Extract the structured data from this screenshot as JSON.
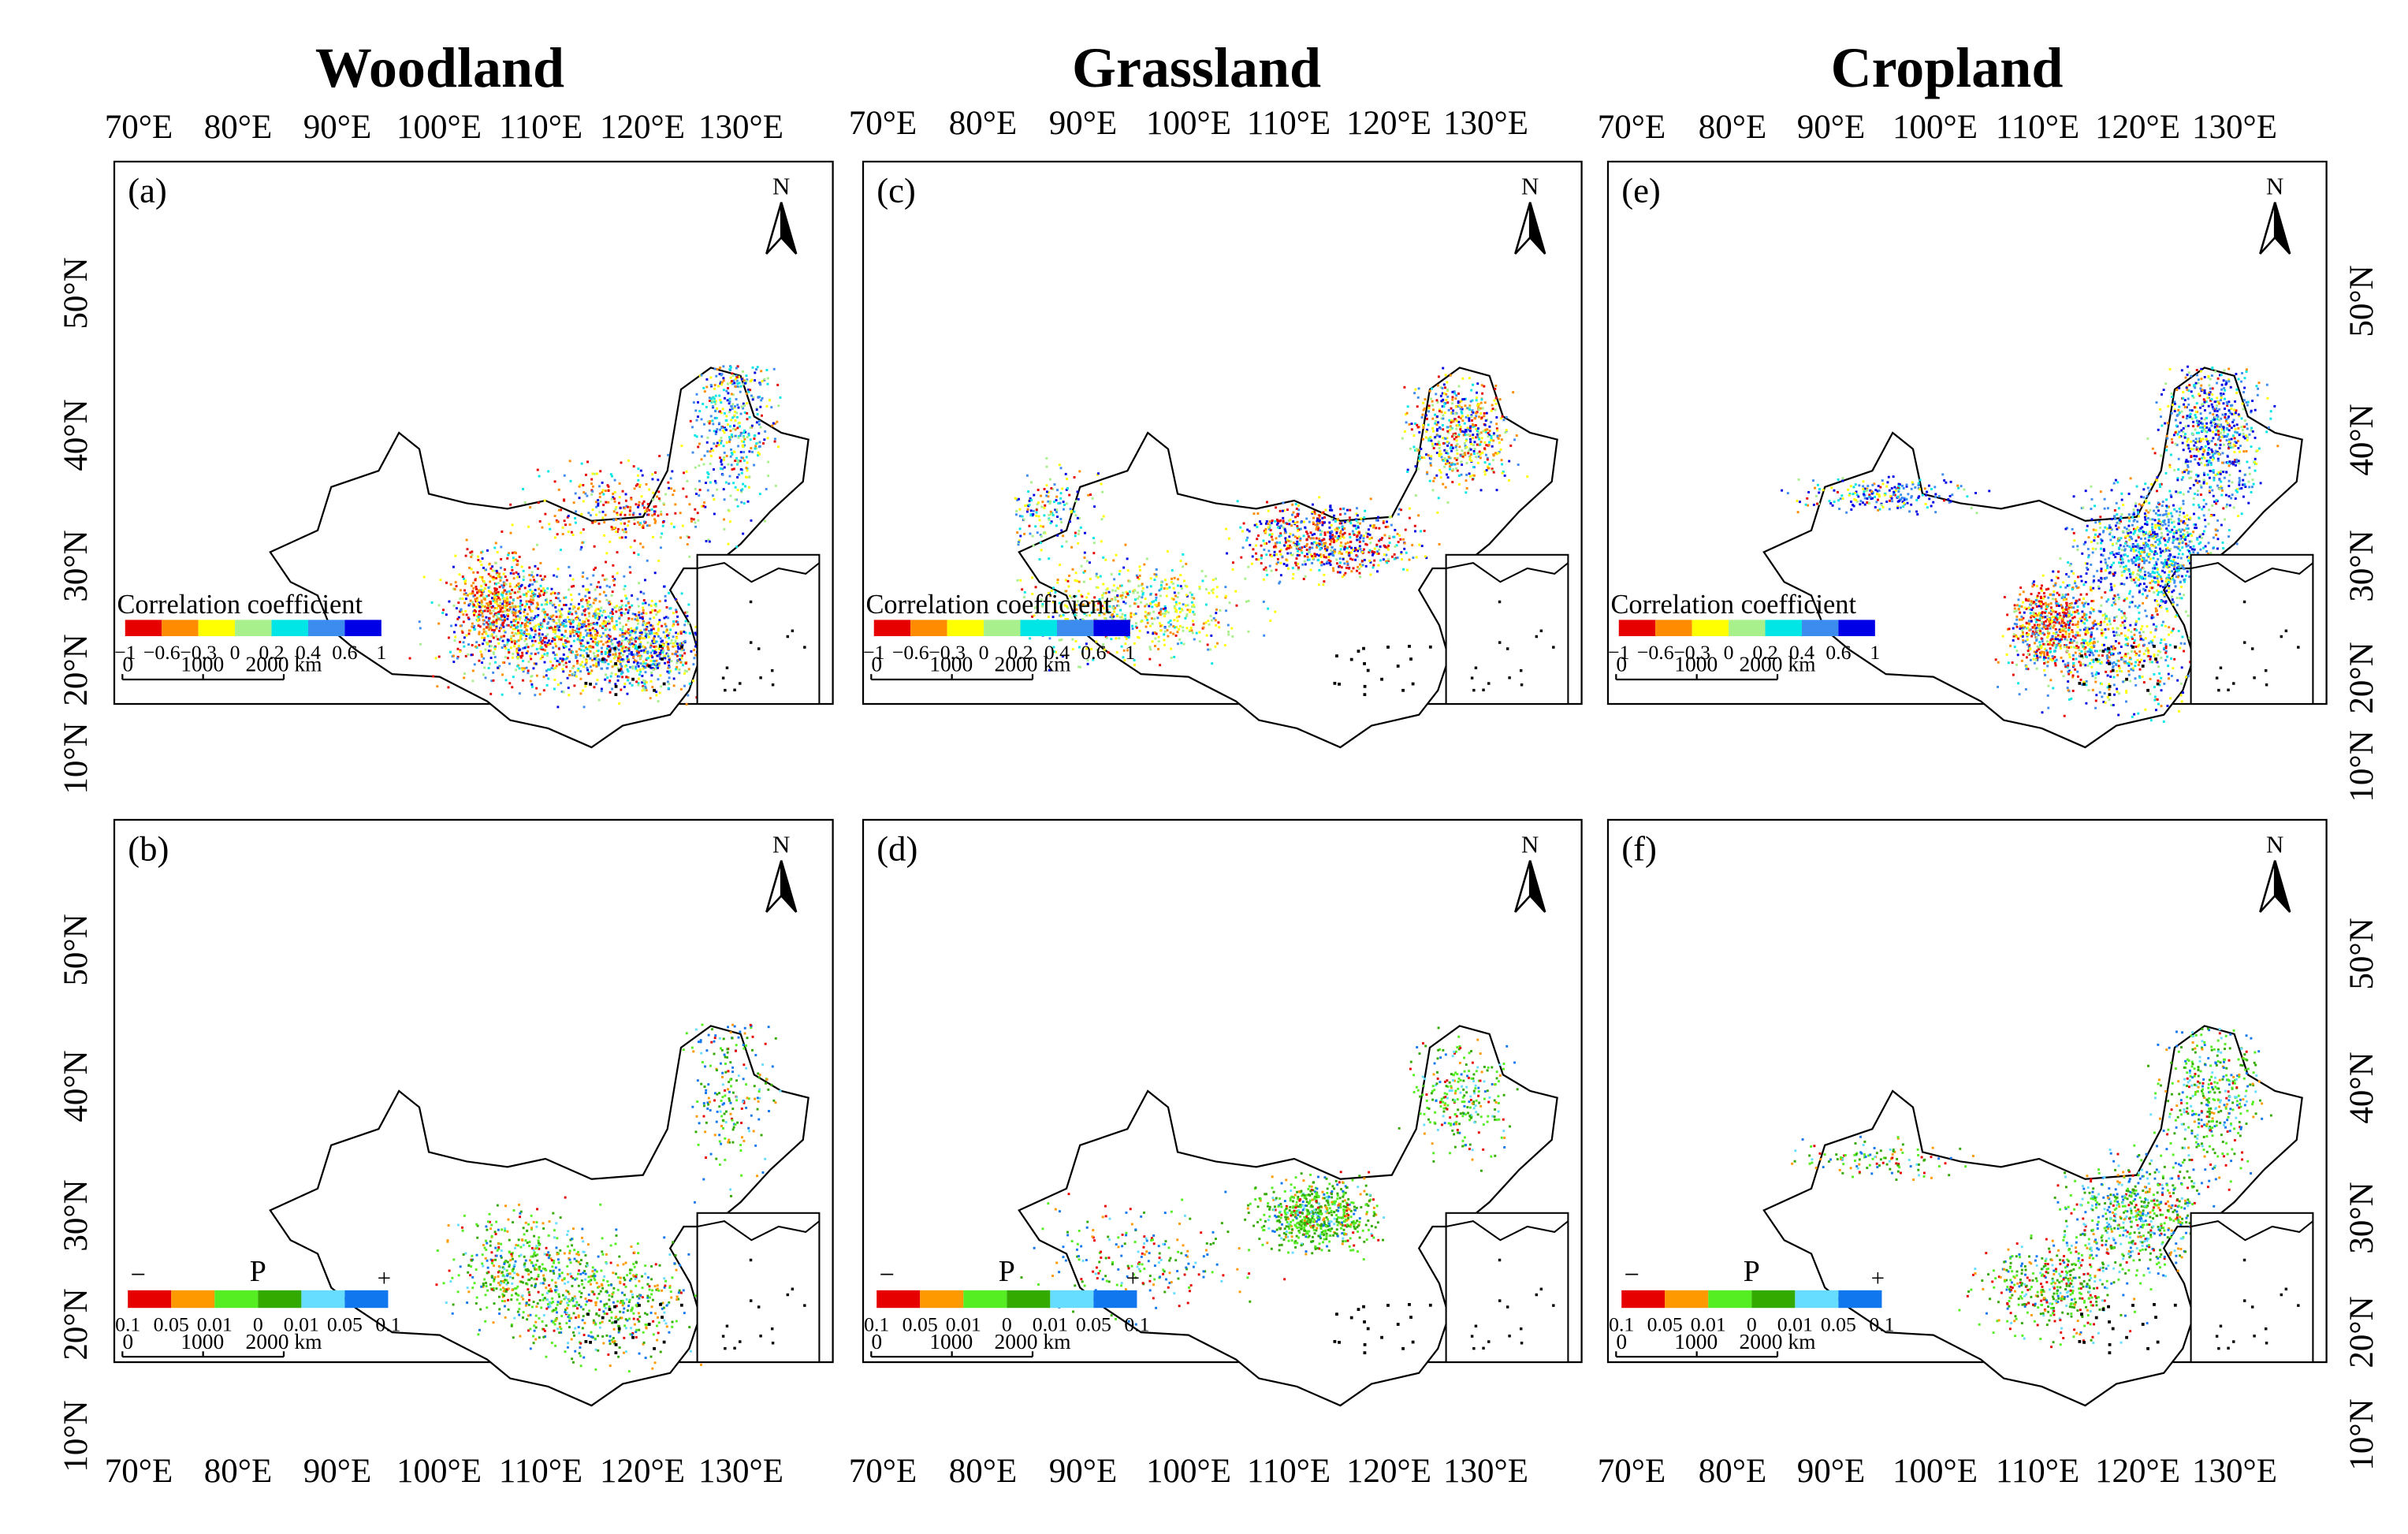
{
  "columns": [
    {
      "title": "Woodland"
    },
    {
      "title": "Grassland"
    },
    {
      "title": "Cropland"
    }
  ],
  "panels": [
    {
      "label": "(a)",
      "legend": "corr",
      "pattern": "woodland_corr"
    },
    {
      "label": "(b)",
      "legend": "p",
      "pattern": "woodland_p"
    },
    {
      "label": "(c)",
      "legend": "corr",
      "pattern": "grassland_corr"
    },
    {
      "label": "(d)",
      "legend": "p",
      "pattern": "grassland_p"
    },
    {
      "label": "(e)",
      "legend": "corr",
      "pattern": "cropland_corr"
    },
    {
      "label": "(f)",
      "legend": "p",
      "pattern": "cropland_p"
    }
  ],
  "axes": {
    "lon_ticks": [
      "70°E",
      "80°E",
      "90°E",
      "100°E",
      "110°E",
      "120°E",
      "130°E"
    ],
    "lat_ticks": [
      "50°N",
      "40°N",
      "30°N",
      "20°N",
      "10°N"
    ]
  },
  "legends": {
    "corr": {
      "title": "Correlation coefficient",
      "colors": [
        "#e60000",
        "#ff8c00",
        "#ffff00",
        "#a8f08c",
        "#00e6e6",
        "#3c8cf0",
        "#0000e6"
      ],
      "ticks": [
        "−1",
        "−0.6",
        "−0.3",
        "0",
        "0.2",
        "0.4",
        "0.6",
        "1"
      ]
    },
    "p": {
      "title": "P",
      "minus": "−",
      "plus": "+",
      "colors": [
        "#e60000",
        "#ff9900",
        "#55ee22",
        "#33aa00",
        "#66ddff",
        "#1177ee"
      ],
      "ticks": [
        "0.1",
        "0.05",
        "0.01",
        "0",
        "0.01",
        "0.05",
        "0.1"
      ]
    }
  },
  "scale_bar": {
    "labels": [
      "0",
      "1000",
      "2000 km"
    ]
  },
  "north_arrow": {
    "label": "N"
  }
}
